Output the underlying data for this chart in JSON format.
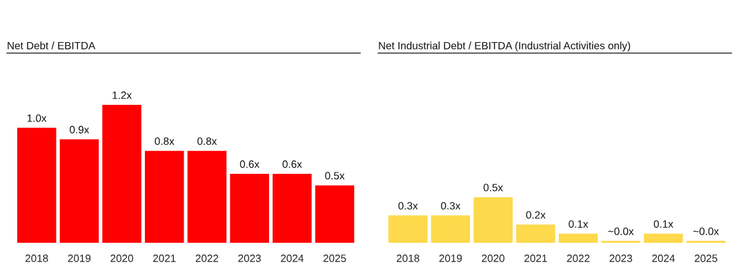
{
  "chart_data": [
    {
      "type": "bar",
      "title": "Net Debt / EBITDA",
      "categories": [
        "2018",
        "2019",
        "2020",
        "2021",
        "2022",
        "2023",
        "2024",
        "2025"
      ],
      "series": [
        {
          "color": "#ff0000",
          "values": [
            1.0,
            0.9,
            1.2,
            0.8,
            0.8,
            0.6,
            0.6,
            0.5
          ],
          "value_labels": [
            "1.0x",
            "0.9x",
            "1.2x",
            "0.8x",
            "0.8x",
            "0.6x",
            "0.6x",
            "0.5x"
          ]
        }
      ],
      "ylim": [
        0,
        1.65
      ],
      "tick_labels": "x",
      "grid": false
    },
    {
      "type": "bar",
      "title": "Net Industrial Debt / EBITDA (Industrial Activities only)",
      "categories": [
        "2018",
        "2019",
        "2020",
        "2021",
        "2022",
        "2023",
        "2024",
        "2025"
      ],
      "series": [
        {
          "color": "#fdd94b",
          "values": [
            0.3,
            0.3,
            0.5,
            0.2,
            0.1,
            0.02,
            0.1,
            0.02
          ],
          "value_labels": [
            "0.3x",
            "0.3x",
            "0.5x",
            "0.2x",
            "0.1x",
            "~0.0x",
            "0.1x",
            "~0.0x"
          ]
        }
      ],
      "ylim": [
        0,
        2.08
      ],
      "tick_labels": "x",
      "grid": false
    }
  ]
}
